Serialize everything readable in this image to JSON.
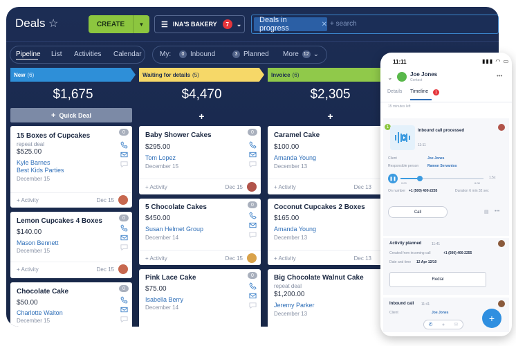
{
  "header": {
    "title": "Deals",
    "create_label": "CREATE",
    "filter_label": "INA'S BAKERY",
    "filter_badge": "7",
    "search_chip": "Deals in progress",
    "search_placeholder": "+ search"
  },
  "subnav": {
    "views": [
      "Pipeline",
      "List",
      "Activities",
      "Calendar"
    ],
    "my_label": "My:",
    "inbound_count": "0",
    "inbound_label": "Inbound",
    "planned_count": "3",
    "planned_label": "Planned",
    "more_label": "More",
    "more_count": "12"
  },
  "columns": [
    {
      "stage": "New",
      "count": "(6)",
      "total": "$1,675",
      "quick_deal": "Quick Deal",
      "cards": [
        {
          "title": "15 Boxes of Cupcakes",
          "sub": "repeat deal",
          "price": "$525.00",
          "contacts": [
            "Kyle Barnes",
            "Best Kids Parties"
          ],
          "date": "December 15",
          "activity": "+ Activity",
          "activity_date": "Dec 15",
          "badge": "0"
        },
        {
          "title": "Lemon Cupcakes 4 Boxes",
          "sub": "",
          "price": "$140.00",
          "contacts": [
            "Mason Bennett"
          ],
          "date": "December 15",
          "activity": "+ Activity",
          "activity_date": "Dec 15",
          "badge": "0"
        },
        {
          "title": "Chocolate Cake",
          "sub": "",
          "price": "$50.00",
          "contacts": [
            "Charlotte Walton"
          ],
          "date": "December 15",
          "activity": "",
          "activity_date": "",
          "badge": "0"
        }
      ]
    },
    {
      "stage": "Waiting for details",
      "count": "(5)",
      "total": "$4,470",
      "quick_deal": "",
      "cards": [
        {
          "title": "Baby Shower Cakes",
          "sub": "",
          "price": "$295.00",
          "contacts": [
            "Tom Lopez"
          ],
          "date": "December 15",
          "activity": "+ Activity",
          "activity_date": "Dec 15",
          "badge": "0"
        },
        {
          "title": "5 Chocolate Cakes",
          "sub": "",
          "price": "$450.00",
          "contacts": [
            "Susan Helmet Group"
          ],
          "date": "December 14",
          "activity": "+ Activity",
          "activity_date": "Dec 15",
          "badge": "0"
        },
        {
          "title": "Pink Lace Cake",
          "sub": "",
          "price": "$75.00",
          "contacts": [
            "Isabella Berry"
          ],
          "date": "December 14",
          "activity": "",
          "activity_date": "",
          "badge": "0"
        }
      ]
    },
    {
      "stage": "Invoice",
      "count": "(6)",
      "total": "$2,305",
      "quick_deal": "",
      "cards": [
        {
          "title": "Caramel Cake",
          "sub": "",
          "price": "$100.00",
          "contacts": [
            "Amanda Young"
          ],
          "date": "December 13",
          "activity": "+ Activity",
          "activity_date": "Dec 13",
          "badge": ""
        },
        {
          "title": "Coconut Cupcakes 2 Boxes",
          "sub": "",
          "price": "$165.00",
          "contacts": [
            "Amanda Young"
          ],
          "date": "December 13",
          "activity": "+ Activity",
          "activity_date": "Dec 13",
          "badge": ""
        },
        {
          "title": "Big Chocolate Walnut Cake",
          "sub": "repeat deal",
          "price": "$1,200.00",
          "contacts": [
            "Jeremy Parker"
          ],
          "date": "December 13",
          "activity": "",
          "activity_date": "",
          "badge": ""
        }
      ]
    }
  ],
  "phone": {
    "time": "11:11",
    "contact_name": "Joe Jones",
    "contact_role": "Contact",
    "tab_details": "Details",
    "tab_timeline": "Timeline",
    "timeline_badge": "1",
    "ago": "15 minutes left",
    "call_title": "Inbound call processed",
    "call_time": "11:11",
    "client_label": "Client",
    "client_value": "Joe Jones",
    "responsible_label": "Responsible person",
    "responsible_value": "Ramon Servantos",
    "audio_start": "0:00",
    "audio_end": "6:08",
    "speed": "1.5x",
    "on_number_label": "On number",
    "on_number_value": "+1 (500) 400-2255",
    "duration": "Duration 6 min 32 sec",
    "call_button": "Call",
    "activity_title": "Activity planned",
    "activity_time": "11:41",
    "activity_created": "Created from incoming call",
    "activity_phone": "+1 (500) 400-2255",
    "activity_datetime_label": "Date and time",
    "activity_datetime": "12 Apr 12/10",
    "redial_button": "Redial",
    "inbound2_title": "Inbound call",
    "inbound2_time": "11:41",
    "inbound2_client_label": "Client",
    "inbound2_client": "Joe Jones",
    "fab": "+"
  },
  "colors": {
    "accent_green": "#8cc63f",
    "stage_new": "#2e8fd8",
    "stage_waiting": "#f6d868",
    "stage_invoice": "#90c94a",
    "link_blue": "#2f6fb8"
  }
}
